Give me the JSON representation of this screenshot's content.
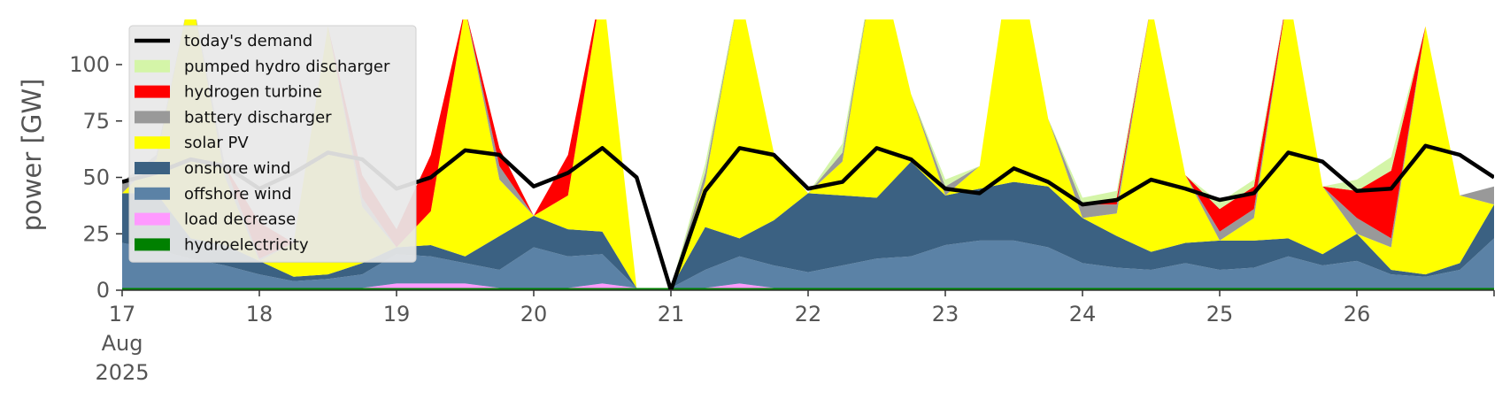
{
  "chart_data": {
    "type": "area",
    "title": "",
    "xlabel": "",
    "ylabel": "power [GW]",
    "ylim": [
      0,
      120
    ],
    "xlim": [
      "2025-08-17 00:00",
      "2025-08-27 00:00"
    ],
    "grid": false,
    "legend_position": "top-left",
    "x_ticks": [
      {
        "x": "2025-08-17",
        "lines": [
          "17",
          "Aug",
          "2025"
        ]
      },
      {
        "x": "2025-08-18",
        "lines": [
          "18"
        ]
      },
      {
        "x": "2025-08-19",
        "lines": [
          "19"
        ]
      },
      {
        "x": "2025-08-20",
        "lines": [
          "20"
        ]
      },
      {
        "x": "2025-08-21",
        "lines": [
          "21"
        ]
      },
      {
        "x": "2025-08-22",
        "lines": [
          "22"
        ]
      },
      {
        "x": "2025-08-23",
        "lines": [
          "23"
        ]
      },
      {
        "x": "2025-08-24",
        "lines": [
          "24"
        ]
      },
      {
        "x": "2025-08-25",
        "lines": [
          "25"
        ]
      },
      {
        "x": "2025-08-26",
        "lines": [
          "26"
        ]
      },
      {
        "x": "2025-08-27",
        "lines": [
          ""
        ]
      }
    ],
    "y_ticks": [
      0,
      25,
      50,
      75,
      100
    ],
    "x": [
      "2025-08-17 00:00",
      "2025-08-17 06:00",
      "2025-08-17 12:00",
      "2025-08-17 18:00",
      "2025-08-18 00:00",
      "2025-08-18 06:00",
      "2025-08-18 12:00",
      "2025-08-18 18:00",
      "2025-08-19 00:00",
      "2025-08-19 06:00",
      "2025-08-19 12:00",
      "2025-08-19 18:00",
      "2025-08-20 00:00",
      "2025-08-20 06:00",
      "2025-08-20 12:00",
      "2025-08-20 18:00",
      "2025-08-21 00:00",
      "2025-08-21 06:00",
      "2025-08-21 12:00",
      "2025-08-21 18:00",
      "2025-08-22 00:00",
      "2025-08-22 06:00",
      "2025-08-22 12:00",
      "2025-08-22 18:00",
      "2025-08-23 00:00",
      "2025-08-23 06:00",
      "2025-08-23 12:00",
      "2025-08-23 18:00",
      "2025-08-24 00:00",
      "2025-08-24 06:00",
      "2025-08-24 12:00",
      "2025-08-24 18:00",
      "2025-08-25 00:00",
      "2025-08-25 06:00",
      "2025-08-25 12:00",
      "2025-08-25 18:00",
      "2025-08-26 00:00",
      "2025-08-26 06:00",
      "2025-08-26 12:00",
      "2025-08-26 18:00",
      "2025-08-27 00:00"
    ],
    "series": [
      {
        "name": "hydroelectricity",
        "color": "#008000",
        "values": [
          1,
          1,
          1,
          1,
          1,
          1,
          1,
          1,
          1,
          1,
          1,
          1,
          1,
          1,
          1,
          1,
          1,
          1,
          1,
          1,
          1,
          1,
          1,
          1,
          1,
          1,
          1,
          1,
          1,
          1,
          1,
          1,
          1,
          1,
          1,
          1,
          1,
          1,
          1,
          1,
          1
        ]
      },
      {
        "name": "load decrease",
        "color": "#ff99ff",
        "values": [
          0,
          0,
          0,
          0,
          0,
          0,
          0,
          0,
          2,
          2,
          2,
          0,
          0,
          0,
          2,
          0,
          0,
          0,
          2,
          0,
          0,
          0,
          0,
          0,
          0,
          0,
          0,
          0,
          0,
          0,
          0,
          0,
          0,
          0,
          0,
          0,
          0,
          0,
          0,
          0,
          0
        ]
      },
      {
        "name": "offshore wind",
        "color": "#5b82a6",
        "values": [
          20,
          17,
          13,
          10,
          6,
          3,
          4,
          6,
          13,
          12,
          9,
          8,
          18,
          14,
          13,
          0,
          0,
          8,
          12,
          10,
          7,
          10,
          13,
          14,
          19,
          21,
          21,
          18,
          11,
          9,
          8,
          11,
          8,
          9,
          14,
          10,
          12,
          6,
          5,
          8,
          22
        ]
      },
      {
        "name": "onshore wind",
        "color": "#3b6182",
        "values": [
          22,
          25,
          9,
          9,
          6,
          2,
          2,
          5,
          3,
          5,
          3,
          15,
          14,
          12,
          10,
          0,
          0,
          19,
          8,
          20,
          35,
          31,
          27,
          42,
          22,
          23,
          26,
          27,
          20,
          14,
          8,
          9,
          13,
          12,
          8,
          5,
          12,
          2,
          1,
          3,
          15
        ]
      },
      {
        "name": "solar PV",
        "color": "#ffff00",
        "values": [
          0,
          15,
          110,
          30,
          0,
          15,
          110,
          25,
          0,
          15,
          110,
          25,
          0,
          15,
          110,
          0,
          0,
          20,
          110,
          30,
          0,
          15,
          110,
          30,
          0,
          10,
          110,
          30,
          0,
          10,
          110,
          30,
          0,
          10,
          110,
          30,
          0,
          10,
          110,
          30,
          0
        ]
      },
      {
        "name": "battery discharger",
        "color": "#999999",
        "values": [
          5,
          2,
          0,
          5,
          1,
          0,
          0,
          4,
          0,
          0,
          0,
          6,
          0,
          0,
          0,
          0,
          0,
          4,
          0,
          0,
          0,
          4,
          0,
          0,
          4,
          0,
          0,
          0,
          6,
          4,
          0,
          0,
          4,
          4,
          0,
          0,
          7,
          4,
          0,
          0,
          8
        ]
      },
      {
        "name": "hydrogen turbine",
        "color": "#ff0000",
        "values": [
          0,
          0,
          0,
          0,
          16,
          0,
          0,
          10,
          8,
          25,
          0,
          8,
          0,
          18,
          0,
          0,
          0,
          0,
          0,
          0,
          0,
          0,
          0,
          0,
          0,
          0,
          0,
          0,
          0,
          3,
          0,
          0,
          10,
          10,
          0,
          0,
          12,
          30,
          0,
          0,
          0
        ]
      },
      {
        "name": "pumped hydro discharger",
        "color": "#d4f5a8",
        "values": [
          0,
          0,
          0,
          0,
          0,
          0,
          0,
          0,
          0,
          0,
          0,
          0,
          0,
          0,
          0,
          0,
          0,
          4,
          0,
          0,
          0,
          4,
          0,
          0,
          3,
          0,
          0,
          0,
          3,
          3,
          0,
          0,
          3,
          3,
          0,
          0,
          5,
          6,
          0,
          0,
          0
        ]
      }
    ],
    "demand": {
      "name": "today's demand",
      "color": "#000000",
      "values": [
        48,
        52,
        58,
        55,
        45,
        52,
        61,
        58,
        45,
        50,
        62,
        60,
        46,
        52,
        63,
        50,
        0,
        44,
        63,
        60,
        45,
        48,
        63,
        58,
        45,
        43,
        54,
        48,
        38,
        40,
        49,
        45,
        40,
        43,
        61,
        57,
        44,
        45,
        64,
        60,
        50
      ]
    }
  }
}
